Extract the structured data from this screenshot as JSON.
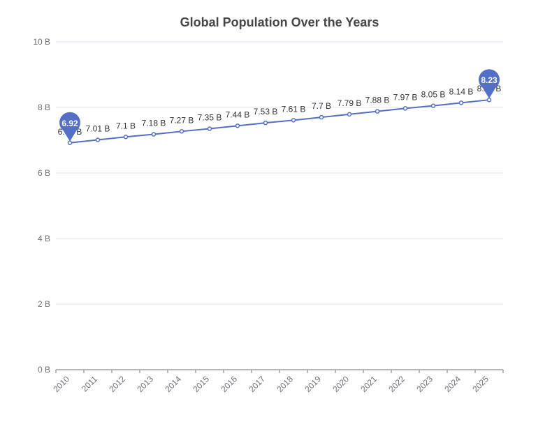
{
  "chart_data": {
    "type": "line",
    "title": "Global Population Over the Years",
    "x": [
      "2010",
      "2011",
      "2012",
      "2013",
      "2014",
      "2015",
      "2016",
      "2017",
      "2018",
      "2019",
      "2020",
      "2021",
      "2022",
      "2023",
      "2024",
      "2025"
    ],
    "series": [
      {
        "values": [
          6.92,
          7.01,
          7.1,
          7.18,
          7.27,
          7.35,
          7.44,
          7.53,
          7.61,
          7.7,
          7.79,
          7.88,
          7.97,
          8.05,
          8.14,
          8.23
        ],
        "data_labels": [
          "6.92 B",
          "7.01 B",
          "7.1 B",
          "7.18 B",
          "7.27 B",
          "7.35 B",
          "7.44 B",
          "7.53 B",
          "7.61 B",
          "7.7 B",
          "7.79 B",
          "7.88 B",
          "7.97 B",
          "8.05 B",
          "8.14 B",
          "8.23 B"
        ]
      }
    ],
    "yticks": [
      {
        "value": 0,
        "label": "0 B"
      },
      {
        "value": 2,
        "label": "2 B"
      },
      {
        "value": 4,
        "label": "4 B"
      },
      {
        "value": 6,
        "label": "6 B"
      },
      {
        "value": 8,
        "label": "8 B"
      },
      {
        "value": 10,
        "label": "10 B"
      }
    ],
    "ylim": [
      0,
      10
    ],
    "grid": true,
    "markers": [
      {
        "label": "6.92",
        "index": 0
      },
      {
        "label": "8.23",
        "index": 15
      }
    ],
    "colors": {
      "line": "#5470c6",
      "grid": "#e0e6f1",
      "axis": "#6e7079",
      "title": "#464646"
    }
  }
}
